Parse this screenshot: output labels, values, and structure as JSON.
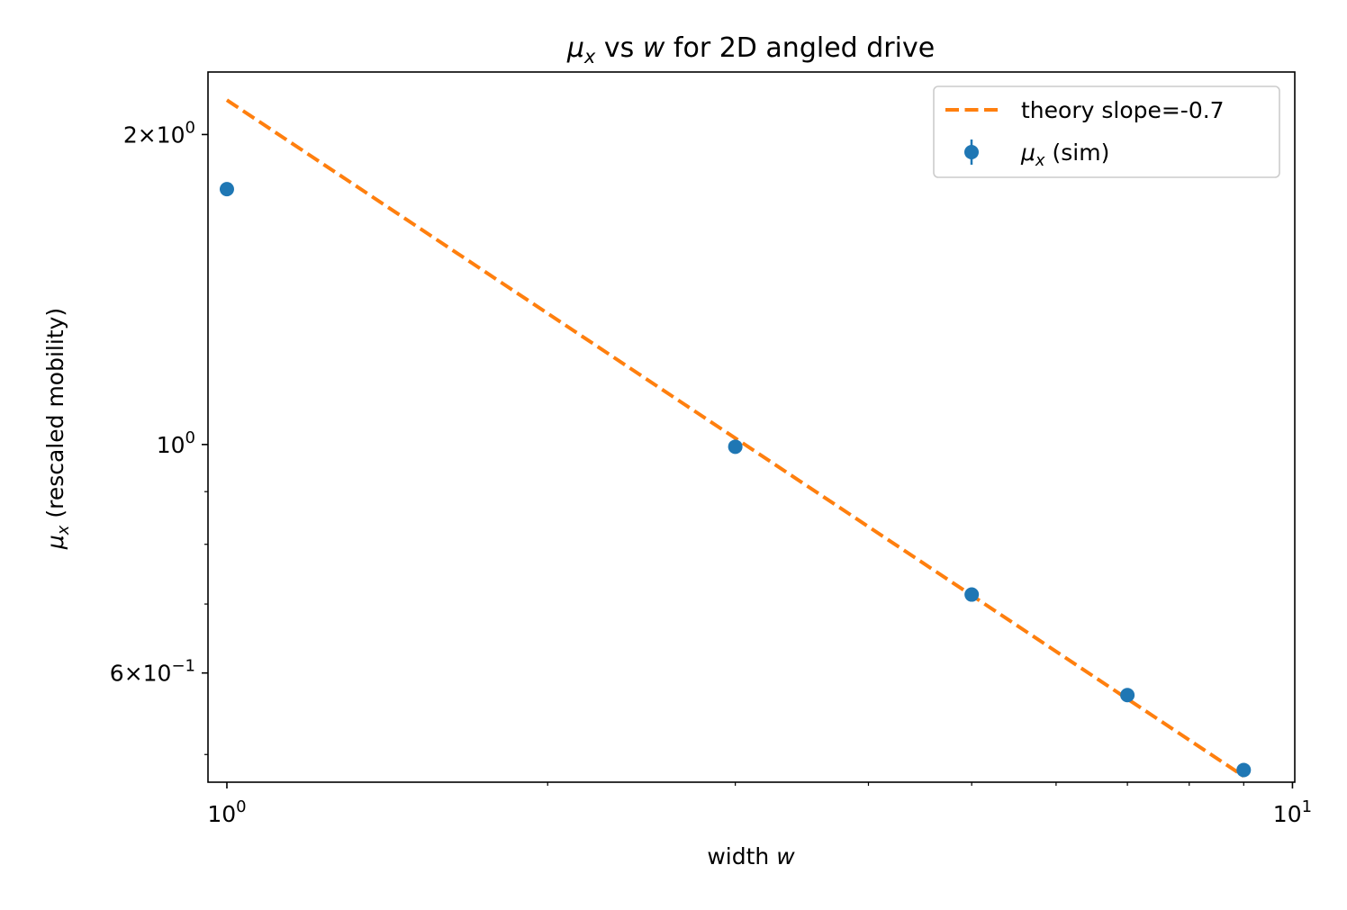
{
  "chart_data": {
    "type": "scatter",
    "title": {
      "sym": "μ",
      "sub": "x",
      "mid": " vs ",
      "var": "w",
      "rest": " for 2D angled drive"
    },
    "xlabel": {
      "text": "width ",
      "var": "w"
    },
    "ylabel": {
      "sym": "μ",
      "sub": "x",
      "rest": " (rescaled mobility)"
    },
    "xscale": "log",
    "yscale": "log",
    "xlim": [
      0.96,
      10.05
    ],
    "ylim": [
      0.47,
      2.3
    ],
    "x_ticks": [
      {
        "value": 1,
        "base": "10",
        "exp": "0"
      },
      {
        "value": 10,
        "base": "10",
        "exp": "1"
      }
    ],
    "y_ticks": [
      {
        "value": 0.6,
        "coef": "6",
        "times": "×",
        "base": "10",
        "exp": "−1"
      },
      {
        "value": 1,
        "coef": "",
        "times": "",
        "base": "10",
        "exp": "0"
      },
      {
        "value": 2,
        "coef": "2",
        "times": "×",
        "base": "10",
        "exp": "0"
      }
    ],
    "x_minor_ticks": [
      2,
      3,
      4,
      5,
      6,
      7,
      8,
      9
    ],
    "y_minor_ticks": [
      0.5,
      0.7,
      0.8,
      0.9
    ],
    "series": [
      {
        "name_sym": "μ",
        "name_sub": "x",
        "name_rest": " (sim)",
        "kind": "errorbar-points",
        "color": "#1f77b4",
        "x": [
          1,
          3,
          5,
          7,
          9
        ],
        "y": [
          1.77,
          0.995,
          0.715,
          0.571,
          0.483
        ]
      },
      {
        "name": "theory slope=-0.7",
        "kind": "dashed-line",
        "color": "#ff7f0e",
        "x": [
          1,
          9
        ],
        "y": [
          2.16,
          0.4763
        ]
      }
    ],
    "legend_position": "upper right",
    "grid": false
  }
}
